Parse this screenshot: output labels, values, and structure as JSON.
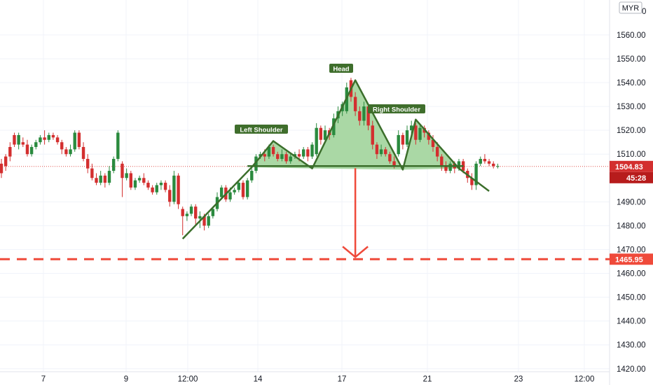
{
  "chart_data": {
    "type": "candlestick",
    "currency": "MYR",
    "y_ticks": [
      "1560.00",
      "1550.00",
      "1540.00",
      "1530.00",
      "1520.00",
      "1510.00",
      "1490.00",
      "1480.00",
      "1470.00",
      "1460.00",
      "1450.00",
      "1440.00",
      "1430.00",
      "1420.00"
    ],
    "top_tick_partial": "0",
    "y_range": [
      1417,
      1572
    ],
    "x_ticks": [
      "7",
      "9",
      "12:00",
      "14",
      "17",
      "21",
      "23",
      "12:00"
    ],
    "current_price": "1504.83",
    "countdown": "45:28",
    "target_price": "1465.95",
    "target_value": 1465.95,
    "current_value": 1504.83,
    "pattern_labels": [
      "Left Shoulder",
      "Head",
      "Right Shoulder"
    ],
    "pattern_points": [
      {
        "i": 42,
        "v": 1474.5
      },
      {
        "i": 58,
        "v": 1504.5
      },
      {
        "i": 63,
        "v": 1515.5
      },
      {
        "i": 72,
        "v": 1504
      },
      {
        "i": 82,
        "v": 1541
      },
      {
        "i": 93,
        "v": 1503.5
      },
      {
        "i": 96,
        "v": 1524.5
      },
      {
        "i": 106,
        "v": 1504
      },
      {
        "i": 113,
        "v": 1494.5
      }
    ],
    "neckline": [
      {
        "i": 57,
        "v": 1505
      },
      {
        "i": 107,
        "v": 1505
      }
    ],
    "candles": [
      [
        1506,
        1502,
        1508,
        1500
      ],
      [
        1509,
        1505,
        1510,
        1503
      ],
      [
        1513,
        1509,
        1515,
        1507
      ],
      [
        1518,
        1514,
        1519,
        1513
      ],
      [
        1514,
        1518,
        1519,
        1512
      ],
      [
        1515,
        1514,
        1517,
        1513
      ],
      [
        1514,
        1510,
        1516,
        1509
      ],
      [
        1510,
        1513,
        1514,
        1509
      ],
      [
        1513,
        1515,
        1516,
        1512
      ],
      [
        1515,
        1517,
        1518,
        1514
      ],
      [
        1517,
        1516,
        1520,
        1514
      ],
      [
        1516,
        1518,
        1519,
        1515
      ],
      [
        1518,
        1517,
        1519,
        1516
      ],
      [
        1517,
        1515,
        1518,
        1514
      ],
      [
        1515,
        1512,
        1516,
        1510
      ],
      [
        1512,
        1510,
        1513,
        1509
      ],
      [
        1510,
        1512,
        1514,
        1509
      ],
      [
        1512,
        1519,
        1520,
        1511
      ],
      [
        1519,
        1513,
        1520,
        1512
      ],
      [
        1513,
        1508,
        1515,
        1507
      ],
      [
        1508,
        1504,
        1510,
        1502
      ],
      [
        1504,
        1500,
        1506,
        1499
      ],
      [
        1500,
        1498,
        1502,
        1497
      ],
      [
        1498,
        1501,
        1503,
        1497
      ],
      [
        1501,
        1498,
        1502,
        1496
      ],
      [
        1498,
        1503,
        1505,
        1497
      ],
      [
        1503,
        1508,
        1509,
        1502
      ],
      [
        1508,
        1519,
        1520,
        1507
      ],
      [
        1506,
        1500,
        1507,
        1492
      ],
      [
        1500,
        1502,
        1504,
        1499
      ],
      [
        1502,
        1496,
        1503,
        1495
      ],
      [
        1496,
        1499,
        1500,
        1495
      ],
      [
        1499,
        1500,
        1501,
        1498
      ],
      [
        1500,
        1498,
        1502,
        1497
      ],
      [
        1498,
        1496,
        1499,
        1495
      ],
      [
        1496,
        1494,
        1497,
        1493
      ],
      [
        1494,
        1497,
        1498,
        1493
      ],
      [
        1497,
        1498,
        1499,
        1495
      ],
      [
        1498,
        1495,
        1499,
        1494
      ],
      [
        1495,
        1490,
        1497,
        1488
      ],
      [
        1490,
        1501,
        1503,
        1489
      ],
      [
        1501,
        1489,
        1502,
        1487
      ],
      [
        1487,
        1484,
        1488,
        1476
      ],
      [
        1484,
        1485,
        1486,
        1482
      ],
      [
        1485,
        1488,
        1489,
        1484
      ],
      [
        1488,
        1483,
        1489,
        1480
      ],
      [
        1483,
        1484,
        1486,
        1479
      ],
      [
        1484,
        1480,
        1485,
        1478
      ],
      [
        1480,
        1484,
        1485,
        1479
      ],
      [
        1484,
        1487,
        1488,
        1483
      ],
      [
        1487,
        1492,
        1494,
        1486
      ],
      [
        1492,
        1496,
        1497,
        1491
      ],
      [
        1496,
        1491,
        1497,
        1490
      ],
      [
        1491,
        1494,
        1496,
        1490
      ],
      [
        1494,
        1495,
        1496,
        1493
      ],
      [
        1495,
        1498,
        1499,
        1494
      ],
      [
        1498,
        1492,
        1499,
        1491
      ],
      [
        1492,
        1499,
        1500,
        1491
      ],
      [
        1499,
        1503,
        1504,
        1498
      ],
      [
        1503,
        1509,
        1510,
        1502
      ],
      [
        1509,
        1510,
        1511,
        1508
      ],
      [
        1510,
        1509,
        1512,
        1507
      ],
      [
        1509,
        1513,
        1514,
        1508
      ],
      [
        1513,
        1510,
        1514,
        1509
      ],
      [
        1510,
        1508,
        1511,
        1507
      ],
      [
        1508,
        1510,
        1512,
        1507
      ],
      [
        1510,
        1507,
        1511,
        1506
      ],
      [
        1507,
        1509,
        1510,
        1506
      ],
      [
        1509,
        1510,
        1511,
        1508
      ],
      [
        1510,
        1509,
        1512,
        1507
      ],
      [
        1509,
        1512,
        1513,
        1508
      ],
      [
        1512,
        1509,
        1513,
        1507
      ],
      [
        1509,
        1514,
        1515,
        1508
      ],
      [
        1510,
        1521,
        1523,
        1509
      ],
      [
        1521,
        1516,
        1522,
        1514
      ],
      [
        1516,
        1520,
        1522,
        1515
      ],
      [
        1520,
        1518,
        1521,
        1516
      ],
      [
        1518,
        1525,
        1527,
        1517
      ],
      [
        1525,
        1528,
        1530,
        1523
      ],
      [
        1528,
        1531,
        1532,
        1526
      ],
      [
        1528,
        1538,
        1540,
        1527
      ],
      [
        1541,
        1534,
        1542,
        1532
      ],
      [
        1534,
        1528,
        1536,
        1526
      ],
      [
        1528,
        1524,
        1530,
        1522
      ],
      [
        1524,
        1530,
        1532,
        1522
      ],
      [
        1530,
        1522,
        1531,
        1520
      ],
      [
        1522,
        1514,
        1524,
        1512
      ],
      [
        1514,
        1510,
        1515,
        1508
      ],
      [
        1510,
        1512,
        1514,
        1509
      ],
      [
        1512,
        1510,
        1513,
        1509
      ],
      [
        1510,
        1507,
        1511,
        1506
      ],
      [
        1507,
        1505,
        1509,
        1504
      ],
      [
        1510,
        1518,
        1520,
        1509
      ],
      [
        1518,
        1514,
        1519,
        1512
      ],
      [
        1514,
        1520,
        1522,
        1513
      ],
      [
        1520,
        1522,
        1524,
        1518
      ],
      [
        1522,
        1516,
        1523,
        1514
      ],
      [
        1516,
        1521,
        1522,
        1515
      ],
      [
        1521,
        1519,
        1522,
        1517
      ],
      [
        1519,
        1516,
        1520,
        1514
      ],
      [
        1516,
        1513,
        1518,
        1511
      ],
      [
        1513,
        1509,
        1515,
        1507
      ],
      [
        1509,
        1505,
        1510,
        1503
      ],
      [
        1505,
        1503,
        1507,
        1502
      ],
      [
        1503,
        1506,
        1507,
        1502
      ],
      [
        1506,
        1504,
        1507,
        1502
      ],
      [
        1504,
        1507,
        1508,
        1503
      ],
      [
        1507,
        1503,
        1508,
        1502
      ],
      [
        1503,
        1500,
        1504,
        1498
      ],
      [
        1500,
        1497,
        1502,
        1495
      ],
      [
        1497,
        1506,
        1507,
        1495
      ],
      [
        1506,
        1508,
        1509,
        1505
      ],
      [
        1508,
        1507,
        1510,
        1506
      ],
      [
        1507,
        1506,
        1508,
        1505
      ],
      [
        1506,
        1505,
        1507,
        1504
      ],
      [
        1505,
        1505,
        1506,
        1504
      ]
    ]
  }
}
